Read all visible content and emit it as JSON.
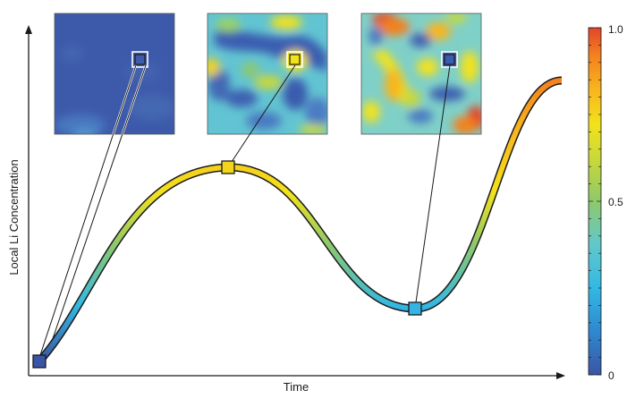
{
  "figure": {
    "xlabel": "Time",
    "ylabel": "Local Li Concentration"
  },
  "colorbar": {
    "ticks": [
      {
        "label": "1.0",
        "value": 1.0
      },
      {
        "label": "0.5",
        "value": 0.5
      },
      {
        "label": "0",
        "value": 0.0
      }
    ],
    "colors": [
      "#3a55a4",
      "#2f86cf",
      "#33b8e3",
      "#64c8c8",
      "#8ec96a",
      "#c8d83a",
      "#f2e21c",
      "#f8b61e",
      "#f3811f",
      "#e2452b"
    ]
  },
  "markers": [
    {
      "id": "start",
      "concentration": 0.02,
      "fill": "#3a55a4"
    },
    {
      "id": "peak",
      "concentration": 0.72,
      "fill": "#f2d61c"
    },
    {
      "id": "valley",
      "concentration": 0.24,
      "fill": "#35b3e6"
    }
  ],
  "insets": [
    {
      "id": "low",
      "base": "#3d5aaa",
      "highlight": "#3d5aaa"
    },
    {
      "id": "mid",
      "base": "#5ec3d6",
      "highlight": "#f2e21c"
    },
    {
      "id": "high",
      "base": "#7fd0c8",
      "highlight": "#2f86cf"
    }
  ]
}
